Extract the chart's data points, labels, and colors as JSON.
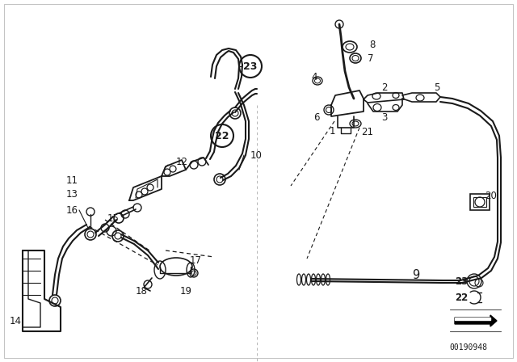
{
  "bg_color": "#ffffff",
  "line_color": "#1a1a1a",
  "watermark": "00190948",
  "figsize": [
    6.4,
    4.48
  ],
  "dpi": 100,
  "border_color": "#cccccc",
  "label_fontsize": 8.5,
  "circle_label_fontsize": 9.5
}
